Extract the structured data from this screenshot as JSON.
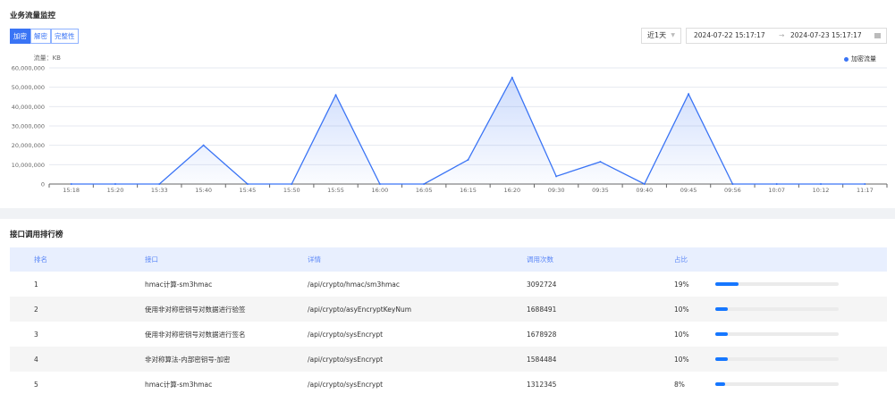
{
  "monitor": {
    "title": "业务流量监控",
    "tabs": [
      {
        "label": "加密",
        "active": true
      },
      {
        "label": "解密",
        "active": false
      },
      {
        "label": "完整性",
        "active": false
      }
    ],
    "period_select": "近1天",
    "date_start": "2024-07-22 15:17:17",
    "date_sep": "→",
    "date_end": "2024-07-23 15:17:17",
    "calendar_icon": "calendar-icon",
    "accent": "#3a74f5"
  },
  "chart_data": {
    "type": "area",
    "ylabel": "流量：KB",
    "ylim": [
      0,
      60000000
    ],
    "yticks": [
      "0",
      "10,000,000",
      "20,000,000",
      "30,000,000",
      "40,000,000",
      "50,000,000",
      "60,000,000"
    ],
    "grid": true,
    "legend_position": "top-right",
    "categories": [
      "15:18",
      "15:20",
      "15:33",
      "15:40",
      "15:45",
      "15:50",
      "15:55",
      "16:00",
      "16:05",
      "16:15",
      "16:20",
      "09:30",
      "09:35",
      "09:40",
      "09:45",
      "09:56",
      "10:07",
      "10:12",
      "11:17"
    ],
    "series": [
      {
        "name": "加密流量",
        "color": "#3a74f5",
        "values": [
          0,
          0,
          0,
          20000000,
          0,
          0,
          46000000,
          0,
          0,
          12500000,
          55000000,
          4000000,
          11500000,
          0,
          46500000,
          0,
          0,
          0,
          0
        ]
      }
    ]
  },
  "ranking": {
    "title": "接口调用排行榜",
    "columns": [
      "排名",
      "接口",
      "详情",
      "调用次数",
      "占比"
    ],
    "rows": [
      {
        "rank": "1",
        "api": "hmac计算-sm3hmac",
        "detail": "/api/crypto/hmac/sm3hmac",
        "count": "3092724",
        "pct": "19%",
        "ratio": 19
      },
      {
        "rank": "2",
        "api": "使用非对称密钥号对数据进行验签",
        "detail": "/api/crypto/asyEncryptKeyNum",
        "count": "1688491",
        "pct": "10%",
        "ratio": 10
      },
      {
        "rank": "3",
        "api": "使用非对称密钥号对数据进行签名",
        "detail": "/api/crypto/sysEncrypt",
        "count": "1678928",
        "pct": "10%",
        "ratio": 10
      },
      {
        "rank": "4",
        "api": "非对称算法-内部密钥号-加密",
        "detail": "/api/crypto/sysEncrypt",
        "count": "1584484",
        "pct": "10%",
        "ratio": 10
      },
      {
        "rank": "5",
        "api": "hmac计算-sm3hmac",
        "detail": "/api/crypto/sysEncrypt",
        "count": "1312345",
        "pct": "8%",
        "ratio": 8
      }
    ]
  }
}
